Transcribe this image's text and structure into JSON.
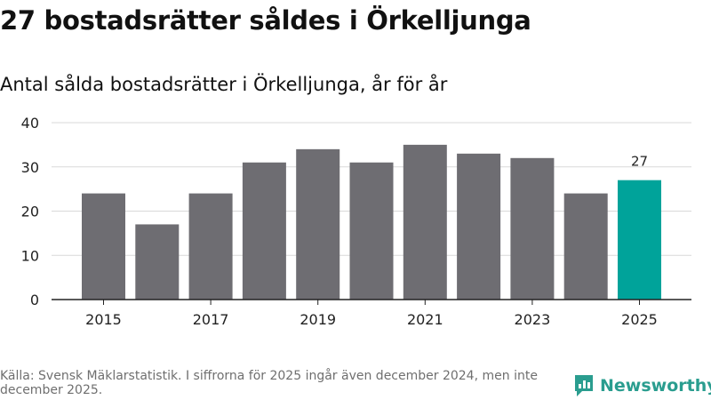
{
  "header": {
    "title": "27 bostadsrätter såldes i Örkelljunga",
    "subtitle": "Antal sålda bostadsrätter i Örkelljunga, år för år"
  },
  "footer": {
    "source": "Källa: Svensk Mäklarstatistik. I siffrorna för 2025 ingår även december 2024, men inte december 2025.",
    "brand": "Newsworthy"
  },
  "colors": {
    "bar": "#6e6d72",
    "highlight": "#00a39a",
    "grid": "#d9d9d9",
    "axis": "#222222",
    "brand": "#2a9d8f"
  },
  "chart_data": {
    "type": "bar",
    "title": "Antal sålda bostadsrätter i Örkelljunga, år för år",
    "xlabel": "",
    "ylabel": "",
    "categories": [
      "2015",
      "2016",
      "2017",
      "2018",
      "2019",
      "2020",
      "2021",
      "2022",
      "2023",
      "2024",
      "2025"
    ],
    "values": [
      24,
      17,
      24,
      31,
      34,
      31,
      35,
      33,
      32,
      24,
      27
    ],
    "x_tick_labels": [
      "2015",
      "2017",
      "2019",
      "2021",
      "2023",
      "2025"
    ],
    "y_ticks": [
      0,
      10,
      20,
      30,
      40
    ],
    "ylim": [
      0,
      40
    ],
    "grid": true,
    "highlight_category": "2025",
    "data_labels": [
      {
        "category": "2025",
        "text": "27"
      }
    ]
  }
}
